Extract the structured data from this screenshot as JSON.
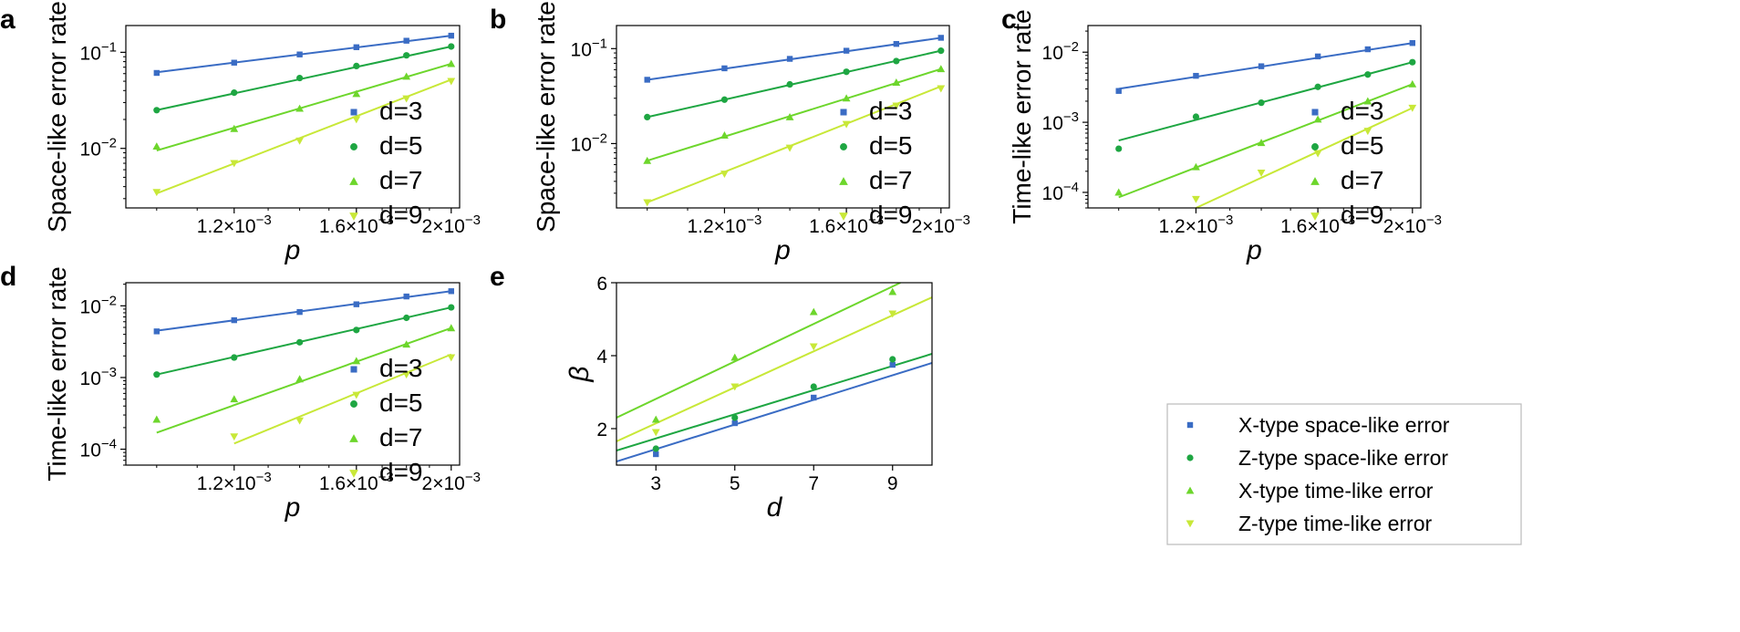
{
  "colors": {
    "d3": "#3a6cc4",
    "d5": "#1ea642",
    "d7": "#6dd62c",
    "d9": "#c8e838"
  },
  "combined_legend": [
    {
      "label": "X-type space-like error",
      "color": "#3a6cc4",
      "marker": "square"
    },
    {
      "label": "Z-type space-like error",
      "color": "#1ea642",
      "marker": "circle"
    },
    {
      "label": "X-type time-like error",
      "color": "#6dd62c",
      "marker": "triangle-up"
    },
    {
      "label": "Z-type time-like error",
      "color": "#c8e838",
      "marker": "triangle-down"
    }
  ],
  "chart_data": [
    {
      "id": "a",
      "letter": "a",
      "type": "scatter",
      "xlabel": "p",
      "ylabel": "Space-like error rate",
      "xscale": "log",
      "yscale": "log",
      "xlim": [
        0.00093,
        0.00204
      ],
      "ylim": [
        0.0024,
        0.19
      ],
      "xticks": [
        0.0012,
        0.0016,
        0.002
      ],
      "xticklabels": [
        "1.2×10",
        "1.6×10",
        "2×10"
      ],
      "xtick_exp": "−3",
      "yticks": [
        0.01,
        0.1
      ],
      "ytick_mant": [
        "10",
        "10"
      ],
      "ytick_exp": [
        "−2",
        "−1"
      ],
      "legend": {
        "position": "lower-right",
        "entries": [
          "d=3",
          "d=5",
          "d=7",
          "d=9"
        ]
      },
      "series": [
        {
          "name": "d=3",
          "marker": "square",
          "x": [
            0.001,
            0.0012,
            0.0014,
            0.0016,
            0.0018,
            0.002
          ],
          "y": [
            0.061,
            0.078,
            0.095,
            0.113,
            0.132,
            0.149
          ],
          "fit": [
            [
              0.001,
              0.062
            ],
            [
              0.002,
              0.149
            ]
          ]
        },
        {
          "name": "d=5",
          "marker": "circle",
          "x": [
            0.001,
            0.0012,
            0.0014,
            0.0016,
            0.0018,
            0.002
          ],
          "y": [
            0.025,
            0.038,
            0.054,
            0.072,
            0.093,
            0.115
          ],
          "fit": [
            [
              0.001,
              0.025
            ],
            [
              0.002,
              0.115
            ]
          ]
        },
        {
          "name": "d=7",
          "marker": "triangle-up",
          "x": [
            0.001,
            0.0012,
            0.0014,
            0.0016,
            0.0018,
            0.002
          ],
          "y": [
            0.0105,
            0.016,
            0.026,
            0.037,
            0.056,
            0.076
          ],
          "fit": [
            [
              0.001,
              0.0095
            ],
            [
              0.002,
              0.076
            ]
          ]
        },
        {
          "name": "d=9",
          "marker": "triangle-down",
          "x": [
            0.001,
            0.0012,
            0.0014,
            0.0016,
            0.0018,
            0.002
          ],
          "y": [
            0.0035,
            0.007,
            0.012,
            0.02,
            0.033,
            0.05
          ],
          "fit": [
            [
              0.001,
              0.0034
            ],
            [
              0.002,
              0.052
            ]
          ]
        }
      ]
    },
    {
      "id": "b",
      "letter": "b",
      "type": "scatter",
      "xlabel": "p",
      "ylabel": "Space-like error rate",
      "xscale": "log",
      "yscale": "log",
      "xlim": [
        0.00093,
        0.00204
      ],
      "ylim": [
        0.0021,
        0.175
      ],
      "xticks": [
        0.0012,
        0.0016,
        0.002
      ],
      "xticklabels": [
        "1.2×10",
        "1.6×10",
        "2×10"
      ],
      "xtick_exp": "−3",
      "yticks": [
        0.01,
        0.1
      ],
      "ytick_mant": [
        "10",
        "10"
      ],
      "ytick_exp": [
        "−2",
        "−1"
      ],
      "legend": {
        "position": "lower-right",
        "entries": [
          "d=3",
          "d=5",
          "d=7",
          "d=9"
        ]
      },
      "series": [
        {
          "name": "d=3",
          "marker": "square",
          "x": [
            0.001,
            0.0012,
            0.0014,
            0.0016,
            0.0018,
            0.002
          ],
          "y": [
            0.047,
            0.062,
            0.078,
            0.095,
            0.112,
            0.13
          ],
          "fit": [
            [
              0.001,
              0.047
            ],
            [
              0.002,
              0.13
            ]
          ]
        },
        {
          "name": "d=5",
          "marker": "circle",
          "x": [
            0.001,
            0.0012,
            0.0014,
            0.0016,
            0.0018,
            0.002
          ],
          "y": [
            0.019,
            0.029,
            0.042,
            0.057,
            0.074,
            0.095
          ],
          "fit": [
            [
              0.001,
              0.019
            ],
            [
              0.002,
              0.095
            ]
          ]
        },
        {
          "name": "d=7",
          "marker": "triangle-up",
          "x": [
            0.001,
            0.0012,
            0.0014,
            0.0016,
            0.0018,
            0.002
          ],
          "y": [
            0.0066,
            0.0122,
            0.019,
            0.03,
            0.044,
            0.061
          ],
          "fit": [
            [
              0.001,
              0.0066
            ],
            [
              0.002,
              0.061
            ]
          ]
        },
        {
          "name": "d=9",
          "marker": "triangle-down",
          "x": [
            0.001,
            0.0012,
            0.0014,
            0.0016,
            0.0018,
            0.002
          ],
          "y": [
            0.0024,
            0.0048,
            0.009,
            0.016,
            0.025,
            0.038
          ],
          "fit": [
            [
              0.001,
              0.0024
            ],
            [
              0.002,
              0.04
            ]
          ]
        }
      ]
    },
    {
      "id": "c",
      "letter": "c",
      "type": "scatter",
      "xlabel": "p",
      "ylabel": "Time-like error rate",
      "xscale": "log",
      "yscale": "log",
      "xlim": [
        0.00093,
        0.00204
      ],
      "ylim": [
        6e-05,
        0.024
      ],
      "xticks": [
        0.0012,
        0.0016,
        0.002
      ],
      "xticklabels": [
        "1.2×10",
        "1.6×10",
        "2×10"
      ],
      "xtick_exp": "−3",
      "yticks": [
        0.0001,
        0.001,
        0.01
      ],
      "ytick_mant": [
        "10",
        "10",
        "10"
      ],
      "ytick_exp": [
        "−4",
        "−3",
        "−2"
      ],
      "legend": {
        "position": "lower-right",
        "entries": [
          "d=3",
          "d=5",
          "d=7",
          "d=9"
        ]
      },
      "series": [
        {
          "name": "d=3",
          "marker": "square",
          "x": [
            0.001,
            0.0012,
            0.0014,
            0.0016,
            0.0018,
            0.002
          ],
          "y": [
            0.0028,
            0.0046,
            0.0063,
            0.0087,
            0.011,
            0.0135
          ],
          "fit": [
            [
              0.001,
              0.003
            ],
            [
              0.002,
              0.0135
            ]
          ]
        },
        {
          "name": "d=5",
          "marker": "circle",
          "x": [
            0.001,
            0.0012,
            0.0014,
            0.0016,
            0.0018,
            0.002
          ],
          "y": [
            0.00042,
            0.0012,
            0.0019,
            0.0032,
            0.0048,
            0.0072
          ],
          "fit": [
            [
              0.001,
              0.00055
            ],
            [
              0.002,
              0.0072
            ]
          ]
        },
        {
          "name": "d=7",
          "marker": "triangle-up",
          "x": [
            0.001,
            0.0012,
            0.0014,
            0.0016,
            0.0018,
            0.002
          ],
          "y": [
            0.0001,
            0.00023,
            0.00051,
            0.0011,
            0.002,
            0.0035
          ],
          "fit": [
            [
              0.001,
              8.5e-05
            ],
            [
              0.002,
              0.0035
            ]
          ]
        },
        {
          "name": "d=9",
          "marker": "triangle-down",
          "x": [
            0.0012,
            0.0014,
            0.0016,
            0.0018,
            0.002
          ],
          "y": [
            8e-05,
            0.00019,
            0.00036,
            0.00075,
            0.0016
          ],
          "fit": [
            [
              0.0012,
              6e-05
            ],
            [
              0.002,
              0.0016
            ]
          ]
        }
      ]
    },
    {
      "id": "d",
      "letter": "d",
      "type": "scatter",
      "xlabel": "p",
      "ylabel": "Time-like error rate",
      "xscale": "log",
      "yscale": "log",
      "xlim": [
        0.00093,
        0.00204
      ],
      "ylim": [
        6e-05,
        0.021
      ],
      "xticks": [
        0.0012,
        0.0016,
        0.002
      ],
      "xticklabels": [
        "1.2×10",
        "1.6×10",
        "2×10"
      ],
      "xtick_exp": "−3",
      "yticks": [
        0.0001,
        0.001,
        0.01
      ],
      "ytick_mant": [
        "10",
        "10",
        "10"
      ],
      "ytick_exp": [
        "−4",
        "−3",
        "−2"
      ],
      "legend": {
        "position": "lower-right",
        "entries": [
          "d=3",
          "d=5",
          "d=7",
          "d=9"
        ]
      },
      "series": [
        {
          "name": "d=3",
          "marker": "square",
          "x": [
            0.001,
            0.0012,
            0.0014,
            0.0016,
            0.0018,
            0.002
          ],
          "y": [
            0.0044,
            0.0063,
            0.0082,
            0.0105,
            0.0135,
            0.016
          ],
          "fit": [
            [
              0.001,
              0.0045
            ],
            [
              0.002,
              0.016
            ]
          ]
        },
        {
          "name": "d=5",
          "marker": "circle",
          "x": [
            0.001,
            0.0012,
            0.0014,
            0.0016,
            0.0018,
            0.002
          ],
          "y": [
            0.0011,
            0.0019,
            0.0031,
            0.0046,
            0.0068,
            0.0095
          ],
          "fit": [
            [
              0.001,
              0.0011
            ],
            [
              0.002,
              0.0095
            ]
          ]
        },
        {
          "name": "d=7",
          "marker": "triangle-up",
          "x": [
            0.001,
            0.0012,
            0.0014,
            0.0016,
            0.0018,
            0.002
          ],
          "y": [
            0.00026,
            0.0005,
            0.00095,
            0.0017,
            0.0029,
            0.0049
          ],
          "fit": [
            [
              0.001,
              0.00017
            ],
            [
              0.002,
              0.0049
            ]
          ]
        },
        {
          "name": "d=9",
          "marker": "triangle-down",
          "x": [
            0.0012,
            0.0014,
            0.0016,
            0.0018,
            0.002
          ],
          "y": [
            0.00015,
            0.00025,
            0.00057,
            0.0011,
            0.0019
          ],
          "fit": [
            [
              0.0012,
              0.00012
            ],
            [
              0.002,
              0.0021
            ]
          ]
        }
      ]
    },
    {
      "id": "e",
      "letter": "e",
      "type": "scatter",
      "xlabel": "d",
      "ylabel": "β",
      "xscale": "linear",
      "yscale": "linear",
      "xlim": [
        2,
        10
      ],
      "ylim": [
        1,
        6
      ],
      "xticks": [
        3,
        5,
        7,
        9
      ],
      "xticklabels": [
        "3",
        "5",
        "7",
        "9"
      ],
      "yticks": [
        2,
        4,
        6
      ],
      "yticklabels": [
        "2",
        "4",
        "6"
      ],
      "series": [
        {
          "name": "X-type space-like error",
          "marker": "square",
          "color": "#3a6cc4",
          "x": [
            3,
            5,
            7,
            9
          ],
          "y": [
            1.3,
            2.15,
            2.85,
            3.75
          ],
          "fit": [
            [
              2,
              1.1
            ],
            [
              10,
              3.8
            ]
          ]
        },
        {
          "name": "Z-type space-like error",
          "marker": "circle",
          "color": "#1ea642",
          "x": [
            3,
            5,
            7,
            9
          ],
          "y": [
            1.45,
            2.3,
            3.15,
            3.9
          ],
          "fit": [
            [
              2,
              1.4
            ],
            [
              10,
              4.05
            ]
          ]
        },
        {
          "name": "X-type time-like error",
          "marker": "triangle-up",
          "color": "#6dd62c",
          "x": [
            3,
            5,
            7,
            9
          ],
          "y": [
            2.25,
            3.95,
            5.2,
            5.75
          ],
          "fit": [
            [
              2,
              2.3
            ],
            [
              9.2,
              6.0
            ]
          ]
        },
        {
          "name": "Z-type time-like error",
          "marker": "triangle-down",
          "color": "#c8e838",
          "x": [
            3,
            5,
            7,
            9
          ],
          "y": [
            1.9,
            3.15,
            4.25,
            5.15
          ],
          "fit": [
            [
              2,
              1.65
            ],
            [
              10,
              5.6
            ]
          ]
        }
      ]
    }
  ]
}
